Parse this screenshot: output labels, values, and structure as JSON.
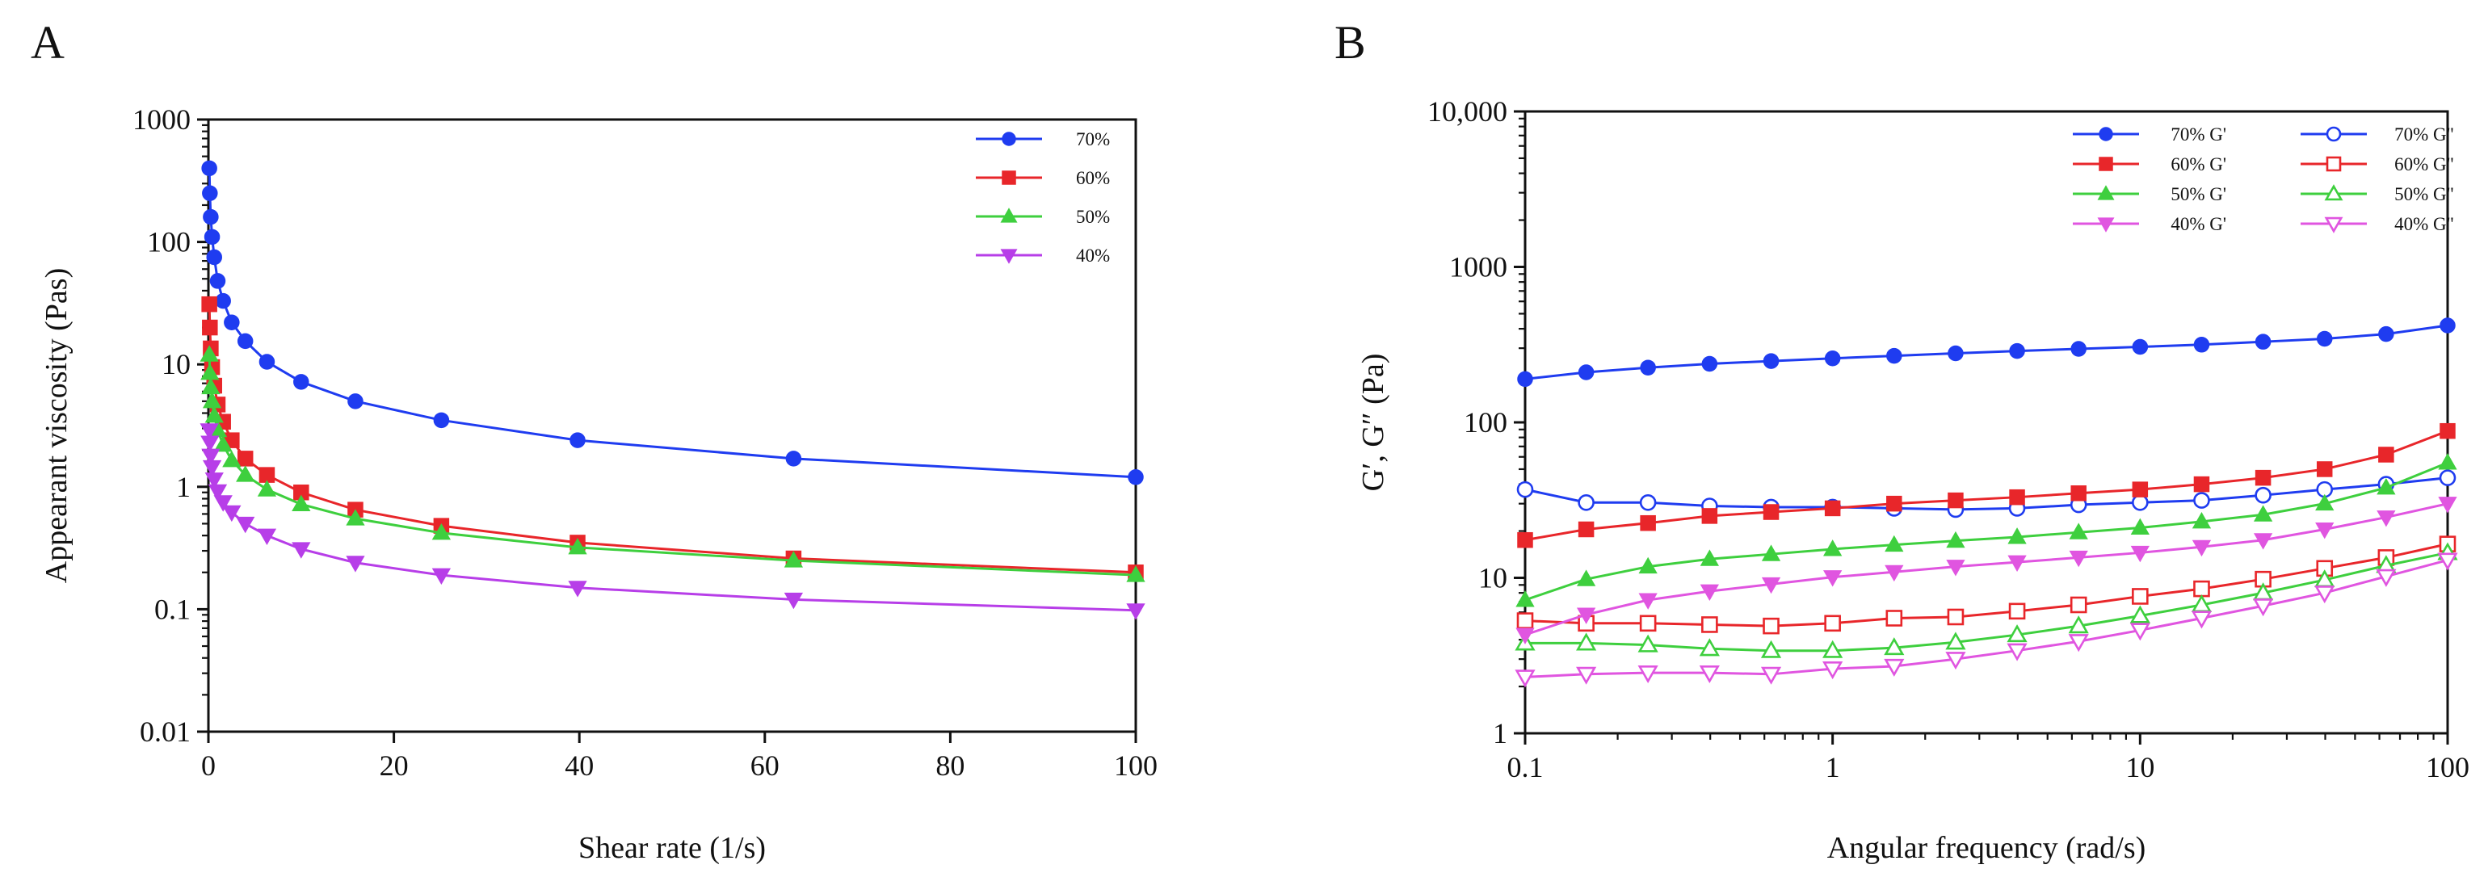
{
  "panels": [
    {
      "letter": "A"
    },
    {
      "letter": "B"
    }
  ],
  "chart_data": [
    {
      "type": "line",
      "panel": "A",
      "title": "",
      "xlabel": "Shear rate (1/s)",
      "ylabel": "Appearant viscosity (Pas)",
      "xscale": "linear",
      "yscale": "log",
      "xlim": [
        0,
        100
      ],
      "ylim": [
        0.01,
        1000
      ],
      "xticks": [
        0,
        20,
        40,
        60,
        80,
        100
      ],
      "xtick_labels": [
        "0",
        "20",
        "40",
        "60",
        "80",
        "100"
      ],
      "yticks": [
        0.01,
        0.1,
        1,
        10,
        100,
        1000
      ],
      "ytick_labels": [
        "0.01",
        "0.1",
        "1",
        "10",
        "100",
        "1000"
      ],
      "legend_position": "top-right",
      "series": [
        {
          "name": "70%",
          "color": "#1f3cf0",
          "marker": "circle",
          "filled": true,
          "x": [
            0.1,
            0.158,
            0.251,
            0.398,
            0.631,
            1.0,
            1.585,
            2.512,
            3.981,
            6.31,
            10,
            15.85,
            25.12,
            39.81,
            63.1,
            100
          ],
          "y": [
            400,
            250,
            160,
            110,
            75,
            48,
            33,
            22,
            15.5,
            10.5,
            7.2,
            5.0,
            3.5,
            2.4,
            1.7,
            1.2
          ]
        },
        {
          "name": "60%",
          "color": "#e8262a",
          "marker": "square",
          "filled": true,
          "x": [
            0.1,
            0.158,
            0.251,
            0.398,
            0.631,
            1.0,
            1.585,
            2.512,
            3.981,
            6.31,
            10,
            15.85,
            25.12,
            39.81,
            63.1,
            100
          ],
          "y": [
            31,
            20,
            13.5,
            9.5,
            6.7,
            4.7,
            3.4,
            2.4,
            1.7,
            1.25,
            0.9,
            0.65,
            0.48,
            0.35,
            0.26,
            0.2
          ]
        },
        {
          "name": "50%",
          "color": "#3ecf3e",
          "marker": "triangle-up",
          "filled": true,
          "x": [
            0.1,
            0.158,
            0.251,
            0.398,
            0.631,
            1.0,
            1.585,
            2.512,
            3.981,
            6.31,
            10,
            15.85,
            25.12,
            39.81,
            63.1,
            100
          ],
          "y": [
            12,
            8.5,
            6.5,
            5.0,
            3.8,
            2.9,
            2.2,
            1.65,
            1.25,
            0.95,
            0.72,
            0.55,
            0.42,
            0.32,
            0.25,
            0.19
          ]
        },
        {
          "name": "40%",
          "color": "#b73ee8",
          "marker": "triangle-down",
          "filled": true,
          "x": [
            0.1,
            0.158,
            0.251,
            0.398,
            0.631,
            1.0,
            1.585,
            2.512,
            3.981,
            6.31,
            10,
            15.85,
            25.12,
            39.81,
            63.1,
            100
          ],
          "y": [
            2.9,
            2.3,
            1.8,
            1.45,
            1.15,
            0.92,
            0.75,
            0.62,
            0.5,
            0.4,
            0.31,
            0.24,
            0.19,
            0.15,
            0.12,
            0.098
          ]
        }
      ]
    },
    {
      "type": "line",
      "panel": "B",
      "title": "",
      "xlabel": "Angular frequency (rad/s)",
      "ylabel": "G′, G″ (Pa)",
      "xscale": "log",
      "yscale": "log",
      "xlim": [
        0.1,
        100
      ],
      "ylim": [
        1,
        10000
      ],
      "xticks": [
        0.1,
        1,
        10,
        100
      ],
      "xtick_labels": [
        "0.1",
        "1",
        "10",
        "100"
      ],
      "yticks": [
        1,
        10,
        100,
        1000,
        10000
      ],
      "ytick_labels": [
        "1",
        "10",
        "100",
        "1000",
        "10,000"
      ],
      "legend_position": "top-right",
      "x": [
        0.1,
        0.158,
        0.251,
        0.398,
        0.631,
        1.0,
        1.585,
        2.512,
        3.981,
        6.31,
        10,
        15.85,
        25.12,
        39.81,
        63.1,
        100
      ],
      "series": [
        {
          "name": "70% G'",
          "color": "#1f3cf0",
          "marker": "circle",
          "filled": true,
          "y": [
            190,
            210,
            225,
            238,
            248,
            258,
            268,
            278,
            288,
            297,
            306,
            316,
            330,
            345,
            370,
            420
          ]
        },
        {
          "name": "70% G\"",
          "color": "#1f3cf0",
          "marker": "circle",
          "filled": false,
          "y": [
            37,
            30.5,
            30.5,
            29,
            28.5,
            28.5,
            28,
            27.5,
            28,
            29.5,
            30.5,
            31.5,
            34,
            37,
            40,
            44
          ]
        },
        {
          "name": "60% G'",
          "color": "#e8262a",
          "marker": "square",
          "filled": true,
          "y": [
            17.5,
            20.5,
            22.5,
            25,
            26.5,
            28,
            30,
            31.5,
            33,
            35,
            37,
            40,
            44,
            50,
            62,
            88
          ]
        },
        {
          "name": "60% G\"",
          "color": "#e8262a",
          "marker": "square",
          "filled": false,
          "y": [
            5.3,
            5.1,
            5.1,
            5.0,
            4.9,
            5.1,
            5.5,
            5.6,
            6.1,
            6.7,
            7.6,
            8.5,
            9.8,
            11.5,
            13.5,
            16.5
          ]
        },
        {
          "name": "50% G'",
          "color": "#3ecf3e",
          "marker": "triangle-up",
          "filled": true,
          "y": [
            7.2,
            9.8,
            11.8,
            13.2,
            14.2,
            15.3,
            16.3,
            17.3,
            18.3,
            19.6,
            21,
            23,
            25.5,
            30,
            38,
            55
          ]
        },
        {
          "name": "50% G\"",
          "color": "#3ecf3e",
          "marker": "triangle-up",
          "filled": false,
          "y": [
            3.8,
            3.8,
            3.7,
            3.5,
            3.4,
            3.4,
            3.55,
            3.85,
            4.3,
            4.9,
            5.7,
            6.7,
            8.0,
            9.7,
            12,
            14.5
          ]
        },
        {
          "name": "40% G'",
          "color": "#e055e0",
          "marker": "triangle-down",
          "filled": true,
          "y": [
            4.3,
            5.8,
            7.2,
            8.2,
            9.1,
            10.1,
            10.9,
            11.8,
            12.6,
            13.5,
            14.5,
            15.8,
            17.5,
            20.5,
            24.5,
            30
          ]
        },
        {
          "name": "40% G\"",
          "color": "#e055e0",
          "marker": "triangle-down",
          "filled": false,
          "y": [
            2.3,
            2.4,
            2.45,
            2.45,
            2.4,
            2.6,
            2.7,
            3.0,
            3.4,
            3.9,
            4.6,
            5.5,
            6.6,
            8.0,
            10.2,
            13
          ]
        }
      ]
    }
  ]
}
